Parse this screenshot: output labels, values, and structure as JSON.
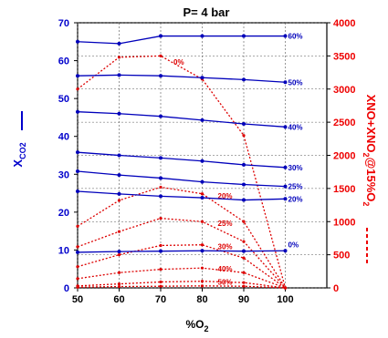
{
  "chart_data": {
    "type": "line",
    "title": "P= 4 bar",
    "xlabel": "%O",
    "xlabel_sub": "2",
    "ylabel_left": {
      "main": "X",
      "sub": "CO2"
    },
    "ylabel_right": {
      "parts": [
        {
          "t": "XNO+XNO",
          "sub": false
        },
        {
          "t": "2",
          "sub": true
        },
        {
          "t": "@15%O",
          "sub": false
        },
        {
          "t": "2",
          "sub": true
        }
      ]
    },
    "x": [
      50,
      60,
      70,
      80,
      90,
      100
    ],
    "xlim": [
      50,
      110
    ],
    "ylim_left": [
      0,
      70
    ],
    "ylim_right": [
      0,
      4000
    ],
    "x_ticks": [
      "50",
      "60",
      "70",
      "80",
      "90",
      "100"
    ],
    "y_left_ticks": [
      "0",
      "10",
      "20",
      "30",
      "40",
      "50",
      "60",
      "70"
    ],
    "y_right_ticks": [
      "0",
      "500",
      "1000",
      "1500",
      "2000",
      "2500",
      "3000",
      "3500",
      "4000"
    ],
    "grid": true,
    "colors": {
      "axis_left": "#0000cc",
      "axis_right": "#ee0000",
      "co2": "#0000bb",
      "nox": "#dd0000"
    },
    "co2_series": [
      {
        "label": "60%",
        "values": [
          65,
          64.5,
          66.5,
          66.5,
          66.5,
          66.5
        ]
      },
      {
        "label": "50%",
        "values": [
          56,
          56.2,
          56,
          55.5,
          55,
          54.3
        ]
      },
      {
        "label": "40%",
        "values": [
          46.5,
          46,
          45.3,
          44.3,
          43.3,
          42.5
        ]
      },
      {
        "label": "30%",
        "values": [
          35.8,
          35,
          34.3,
          33.5,
          32.5,
          31.8
        ]
      },
      {
        "label": "25%",
        "values": [
          30.8,
          29.8,
          29,
          28,
          27.3,
          26.8
        ]
      },
      {
        "label": "20%",
        "values": [
          25.5,
          24.8,
          24.2,
          23.8,
          23.2,
          23.5
        ]
      },
      {
        "label": "0%",
        "values": [
          9.4,
          9.6,
          9.7,
          9.8,
          9.7,
          9.8
        ]
      }
    ],
    "nox_series": [
      {
        "label": "0%",
        "values": [
          3000,
          3480,
          3500,
          3150,
          2300,
          0
        ]
      },
      {
        "label": "20%",
        "values": [
          930,
          1320,
          1520,
          1420,
          1000,
          0
        ]
      },
      {
        "label": "25%",
        "values": [
          620,
          850,
          1050,
          1000,
          700,
          0
        ]
      },
      {
        "label": "30%",
        "values": [
          320,
          500,
          640,
          650,
          450,
          0
        ]
      },
      {
        "label": "40%",
        "values": [
          140,
          230,
          280,
          300,
          230,
          0
        ]
      },
      {
        "label": "50%",
        "values": [
          30,
          60,
          90,
          100,
          80,
          0
        ]
      },
      {
        "label": "",
        "values": [
          10,
          20,
          25,
          30,
          25,
          0
        ]
      }
    ]
  }
}
